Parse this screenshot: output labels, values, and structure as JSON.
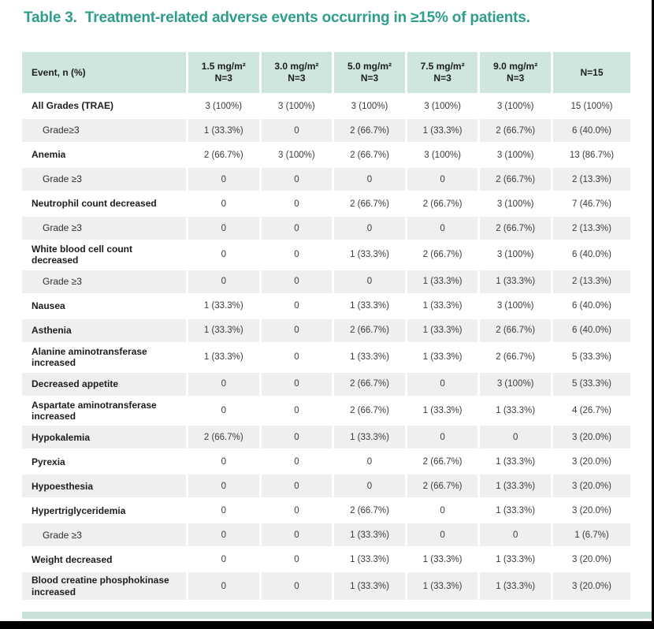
{
  "title": "Table 3.  Treatment-related adverse events occurring in ≥15% of patients.",
  "colors": {
    "title_teal": "#2e9d8c",
    "header_bg": "#cee6df",
    "shaded_row_bg": "#efefef",
    "footer_strip": "#c8e2da",
    "frame_black": "#010101"
  },
  "table": {
    "columns": [
      {
        "label": "Event, n (%)",
        "sub": ""
      },
      {
        "label": "1.5 mg/m²",
        "sub": "N=3"
      },
      {
        "label": "3.0 mg/m²",
        "sub": "N=3"
      },
      {
        "label": "5.0 mg/m²",
        "sub": "N=3"
      },
      {
        "label": "7.5 mg/m²",
        "sub": "N=3"
      },
      {
        "label": "9.0 mg/m²",
        "sub": "N=3"
      },
      {
        "label": "N=15",
        "sub": ""
      }
    ],
    "rows": [
      {
        "event": "All Grades (TRAE)",
        "indent": false,
        "shaded": false,
        "values": [
          "3 (100%)",
          "3 (100%)",
          "3 (100%)",
          "3 (100%)",
          "3 (100%)",
          "15 (100%)"
        ]
      },
      {
        "event": "Grade≥3",
        "indent": true,
        "shaded": true,
        "values": [
          "1 (33.3%)",
          "0",
          "2 (66.7%)",
          "1 (33.3%)",
          "2 (66.7%)",
          "6 (40.0%)"
        ]
      },
      {
        "event": "Anemia",
        "indent": false,
        "shaded": false,
        "values": [
          "2 (66.7%)",
          "3 (100%)",
          "2 (66.7%)",
          "3 (100%)",
          "3 (100%)",
          "13 (86.7%)"
        ]
      },
      {
        "event": "Grade ≥3",
        "indent": true,
        "shaded": true,
        "values": [
          "0",
          "0",
          "0",
          "0",
          "2 (66.7%)",
          "2 (13.3%)"
        ]
      },
      {
        "event": "Neutrophil count decreased",
        "indent": false,
        "shaded": false,
        "values": [
          "0",
          "0",
          "2 (66.7%)",
          "2 (66.7%)",
          "3 (100%)",
          "7 (46.7%)"
        ]
      },
      {
        "event": "Grade ≥3",
        "indent": true,
        "shaded": true,
        "values": [
          "0",
          "0",
          "0",
          "0",
          "2 (66.7%)",
          "2 (13.3%)"
        ]
      },
      {
        "event": "White blood cell count decreased",
        "indent": false,
        "shaded": false,
        "values": [
          "0",
          "0",
          "1 (33.3%)",
          "2 (66.7%)",
          "3 (100%)",
          "6 (40.0%)"
        ]
      },
      {
        "event": "Grade ≥3",
        "indent": true,
        "shaded": true,
        "values": [
          "0",
          "0",
          "0",
          "1 (33.3%)",
          "1 (33.3%)",
          "2 (13.3%)"
        ]
      },
      {
        "event": "Nausea",
        "indent": false,
        "shaded": false,
        "values": [
          "1 (33.3%)",
          "0",
          "1 (33.3%)",
          "1 (33.3%)",
          "3 (100%)",
          "6 (40.0%)"
        ]
      },
      {
        "event": "Asthenia",
        "indent": false,
        "shaded": true,
        "values": [
          "1 (33.3%)",
          "0",
          "2 (66.7%)",
          "1 (33.3%)",
          "2 (66.7%)",
          "6 (40.0%)"
        ]
      },
      {
        "event": "Alanine aminotransferase increased",
        "indent": false,
        "shaded": false,
        "values": [
          "1 (33.3%)",
          "0",
          "1 (33.3%)",
          "1 (33.3%)",
          "2 (66.7%)",
          "5 (33.3%)"
        ]
      },
      {
        "event": "Decreased appetite",
        "indent": false,
        "shaded": true,
        "values": [
          "0",
          "0",
          "2 (66.7%)",
          "0",
          "3 (100%)",
          "5 (33.3%)"
        ]
      },
      {
        "event": "Aspartate aminotransferase increased",
        "indent": false,
        "shaded": false,
        "values": [
          "0",
          "0",
          "2 (66.7%)",
          "1 (33.3%)",
          "1 (33.3%)",
          "4 (26.7%)"
        ]
      },
      {
        "event": "Hypokalemia",
        "indent": false,
        "shaded": true,
        "values": [
          "2 (66.7%)",
          "0",
          "1 (33.3%)",
          "0",
          "0",
          "3 (20.0%)"
        ]
      },
      {
        "event": "Pyrexia",
        "indent": false,
        "shaded": false,
        "values": [
          "0",
          "0",
          "0",
          "2 (66.7%)",
          "1 (33.3%)",
          "3 (20.0%)"
        ]
      },
      {
        "event": "Hypoesthesia",
        "indent": false,
        "shaded": true,
        "values": [
          "0",
          "0",
          "0",
          "2 (66.7%)",
          "1 (33.3%)",
          "3 (20.0%)"
        ]
      },
      {
        "event": "Hypertriglyceridemia",
        "indent": false,
        "shaded": false,
        "values": [
          "0",
          "0",
          "2 (66.7%)",
          "0",
          "1 (33.3%)",
          "3 (20.0%)"
        ]
      },
      {
        "event": "Grade ≥3",
        "indent": true,
        "shaded": true,
        "values": [
          "0",
          "0",
          "1 (33.3%)",
          "0",
          "0",
          "1 (6.7%)"
        ]
      },
      {
        "event": "Weight decreased",
        "indent": false,
        "shaded": false,
        "values": [
          "0",
          "0",
          "1 (33.3%)",
          "1 (33.3%)",
          "1 (33.3%)",
          "3 (20.0%)"
        ]
      },
      {
        "event": "Blood creatine phosphokinase increased",
        "indent": false,
        "shaded": true,
        "values": [
          "0",
          "0",
          "1 (33.3%)",
          "1 (33.3%)",
          "1 (33.3%)",
          "3 (20.0%)"
        ]
      }
    ]
  }
}
